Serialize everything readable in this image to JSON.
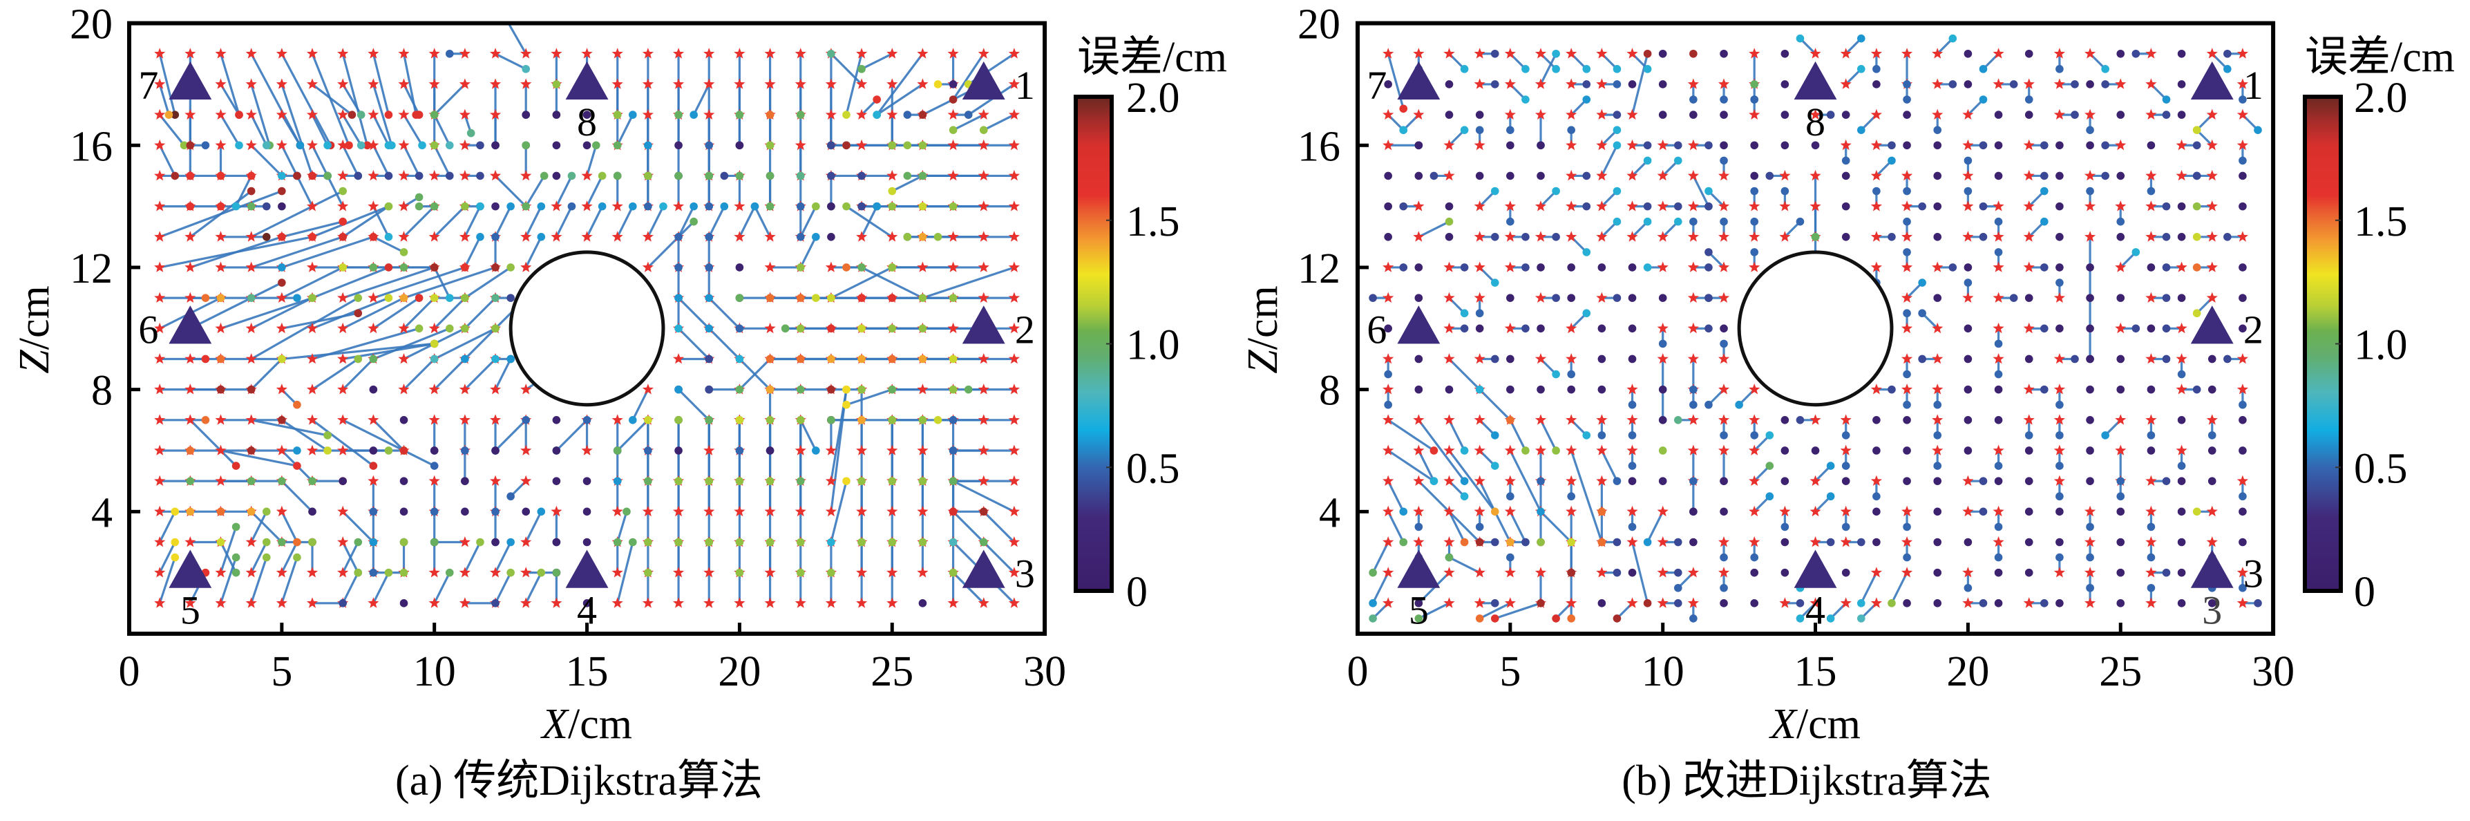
{
  "style": {
    "star_color": "#e8302c",
    "line_color": "#3978bd",
    "anchor_color": "#3d2c7c",
    "obstacle_stroke": "#111111",
    "annotation_color": "#444444"
  },
  "colormap": [
    {
      "v": 0.0,
      "c": "#3b1e6b"
    },
    {
      "v": 0.3,
      "c": "#42297a"
    },
    {
      "v": 0.5,
      "c": "#3466b0"
    },
    {
      "v": 0.65,
      "c": "#12ade2"
    },
    {
      "v": 0.8,
      "c": "#4db6bc"
    },
    {
      "v": 0.95,
      "c": "#62ae70"
    },
    {
      "v": 1.05,
      "c": "#6cb050"
    },
    {
      "v": 1.15,
      "c": "#b6cf36"
    },
    {
      "v": 1.28,
      "c": "#f0e421"
    },
    {
      "v": 1.42,
      "c": "#f29a30"
    },
    {
      "v": 1.52,
      "c": "#ea6430"
    },
    {
      "v": 1.6,
      "c": "#e5332e"
    },
    {
      "v": 1.8,
      "c": "#d8302c"
    },
    {
      "v": 1.9,
      "c": "#a62c2a"
    },
    {
      "v": 2.0,
      "c": "#6a2820"
    }
  ],
  "chart_data": [
    {
      "type": "scatter",
      "title": "(a) 传统Dijkstra算法",
      "xlabel": "X/cm",
      "ylabel": "Z/cm",
      "xlim": [
        0,
        30
      ],
      "ylim": [
        0,
        20
      ],
      "xticks": [
        "0",
        "5",
        "10",
        "15",
        "20",
        "25",
        "30"
      ],
      "yticks": [
        "4",
        "8",
        "12",
        "16",
        "20"
      ],
      "colorbar": {
        "title": "误差/cm",
        "range": [
          0,
          2
        ],
        "ticks": [
          "2.0",
          "1.5",
          "1.0",
          "0.5",
          "0"
        ]
      },
      "obstacle": {
        "shape": "circle",
        "center": [
          15,
          10
        ],
        "radius": 2.5
      },
      "anchors": [
        {
          "label": "1",
          "x": 28,
          "z": 18,
          "side": "right"
        },
        {
          "label": "2",
          "x": 28,
          "z": 10,
          "side": "right"
        },
        {
          "label": "3",
          "x": 28,
          "z": 2,
          "side": "right"
        },
        {
          "label": "4",
          "x": 15,
          "z": 2,
          "side": "below"
        },
        {
          "label": "5",
          "x": 2,
          "z": 2,
          "side": "below"
        },
        {
          "label": "6",
          "x": 2,
          "z": 10,
          "side": "left"
        },
        {
          "label": "7",
          "x": 2,
          "z": 18,
          "side": "left"
        },
        {
          "label": "8",
          "x": 15,
          "z": 18,
          "side": "below"
        }
      ],
      "annotations": [],
      "grid": {
        "x_min": 1,
        "z_max": 19
      },
      "rows": [
        "0.5,-2,2 0,-4,1.9 0.6,-2,1.7 1.6,-3,1.9 1.6,-3,1.8 1.2,-3,1.6 0.8,-3,1.7 0.5,-2,1.6 0.4,-2,1.7 0,-3,1.1 -0.5,0,0.5 1,-0.5,0.8 -0.8,1.4,1.5 0,-1,1.1 0,-1,1.0 0,-2,0.9 0,-3,0.6 0,-2,1.0 0,-3,0.5 0,-2,1.0 0,-3,1.0 0,-2,1.5 0,-3,1.4 -0.5,-2,1.2 -1,-0.5,1.0 -1.5,-2,0.7 0,-1,0.2 -1,-1.5,1.9 -1.5,-1,1.2",
        "0.3,-1,1.4 0,0,0.1 0.6,-1,1.7 0.6,-2,1.0 1,-3,1.8 1.3,-1,1.9 0.6,-1,0.9 0.6,-2,0.7 0.5,-1,1.7 0,-1,1.3 -1,-1,1.0 0,-2,0.9 0,-1,0.5 0,-1,1.1 0,0,0.1 0,-1,1.1 0,-3,1.0 0,-2,1.0 -0.5,-1,0.6 0,-2,1.4 0,-1,1.5 0,-1,1.0 0,-2,1.1 -1,1,0.9 0,-2,0.5 -1.5,-1,0.7 -0.5,0,1.3 -2,-1,1.9 -1.5,-1,1.1",
        "0.8,-1,1.1 0,-1,1.9 0.6,-1,0.7 0.5,-1,0.8 0.6,-1,0.6 0.5,-1,0.7 0.6,-1,0.8 0.5,-1,0.7 0.6,-1,0.7 0.5,-1,0.8 0.2,-0.6,0.9 0,-1,0.5 0,0,0.1 0,0,0.1 0,0,0.1 0,-1,1.0 0,-2,0.6 0,-2,0.5 0,-2,0.5 0,-1,0.5 0,-1,1.1 0,-2,0.9 0,-1,0.6 0.5,0.5,1.6 0,-1,0.5 -0.5,0,0.5 0.5,0,0.5 -1,-0.5,1.1 -1,-0.5,1.1",
        "0.5,-1,1.9 0.5,0,0.5 0,-1,1.3 1,-1,0.7 0.5,-1,0.6 0.5,-1,0.7 0.5,-1,0.6 0.5,-1,0.7 0.5,-1,0.6 0.5,-1,0.6 0.5,0,0.4 0,0,0.1 0,0,0.1 0,0,0.1 0,0,0.1 0.5,1,0.6 0,-1,0.5 0,0,0.2 0,-1,1.0 0,0,0.1 0,-2,1.0 0,-1,0.9 0.5,0,0.5 -1,0,0.4 -1.5,0,1.0 -2.5,0,1.9 -2,0,1.1 -2.5,0,1.1 -3,0,1.1",
        "1,0,1.6 1,0,1.6 1,0,1.6 -0.5,-1,0.7 0.5,0,0.4 0.5,0,0.4 0.5,0,0.4 0.5,0,0.4 0.5,0,0.4 0.5,0,0.4 0.5,0,0.4 1,-1,1.0 0,1,1.0 0,0,0.1 0.3,1,1.0 0,0,0.3 0,-1,0.5 0,0,0.2 0,-1,0.5 -0.5,0,0.4 0,0,0.1 0,-1,0.5 0,-1,0.5 -1,0,0.4 -1,0,0.4 -1,-0.5,1.2 -1.5,0,1.0 -2,0,1.1 -3,0,1.0",
        "1,0,1.6 1,0,1.6 1,0,1.0 0.5,0,0.4 0,0,0.1 -0.5,1,1.9 -0.5,1,1.0 0.5,-1,0.7 0.5,0.3,1.0 -0.5,0,1.0 0.5,0,0.4 0,0,0.2 0.6,1,1.0 0.5,1,0.9 0.5,1,1.1 0,1,1.0 0,1,1.1 0,1,1.0 0,1,1.0 0,1,1.0 0,1,1.0 0,-1,0.5 0,0,0.1 0.5,0,0.4 -1,0,0.4 -1.5,0,1.0 -2,0,1.1 -2,0,1.2 -2,0,1.1",
        "4,1.5,1.9 2,1.5,1.9 1.5,0,2 3,1.5,1.1 2,0.5,1.6 2.5,1,1.1 1.5,1,1.1 1,-0.5,1.1 1,1,1.0 1,1,1.1 0.5,1,0.7 0.5,1,0.6 0.5,1,0.6 0.5,1,0.5 0.5,1,0.6 0.5,1,0.6 0.5,1,0.7 0.5,1,0.6 0.5,1,0.6 0.5,1,0.6 -0.5,1,0.6 0.5,1,1.1 0,0,0.1 0.5,1,0.6 -1.5,1,1.1 -0.5,0,0.4 -1,0,1.4 -2.5,0,1.1 -2.5,0,1.1",
        "5,1,1.6 3,1,1.7 2,0,0.6 3,1,1.8 3,1,1.7 2,0,1.0 2,0,1.0 2,0,1.1 1,0,1.1 0.5,-1,0.7 0.5,1,0.6 0,1,0.5 0.5,1,0.6 x x x 1.5,1.5,1.0 0,1,0.5 0,1,0.5 0,0,0.1 1,0,1.1 0.5,1,0.6 1,0,1.1 -0.5,0,1.5 -2,-1,1.2 -1,0,1.1 -2,0,1.3 -3,0,1.1 -3,-1,1.1",
        "1.5,0,1.5 1,0,1.5 1,0,0.9 1.5,0,0.6 2,1,1.2 2.5,1,1.8 3,1,1.9 3,1,1.6 3,1,1.9 1,0,1.2 1.5,1,1.1 0.5,0,0.4 x x x x x 0,1,0.5 0,1,0.5 0,0,0.1 -1,0,1.0 -1,0,1.0 -2,0,1.5 -2,0,1.5 -2.5,0,1.2 -2,1,1.0 -3,0,1.6 -3,0,1.7 -2,0,1.1",
        "2,1,1.4 3,1.5,1.9 3,1,1.2 2,1,1.1 2.5,0.5,1.9 2.5,1,1.2 2,1,1.4 1.5,1,1.7 1,1,1.2 1,1,1.1 1,1,0.9 1,1,0.7 x x x x x 0,1,0.5 -1,1,0.6 -1,1,0.6 -1,0,0.5 -0.5,0,1.1 -1.5,0,1.0 -2,0,1.1 -2,0,1.7 -2,0,1.6 -3,0,1.2 -3,0,1.1 -3,0,1.1",
        "1.5,0,1.6 1,0,1.5 2,0,1.0 3.5,2,1.1 5,0.5,1.9 3.5,1,1.1 3,0.5,1.2 2.5,1,1.1 2,1,1.1 2,1,1.1 1,1,1.1 0.5,0,0.4 x x x x x 1,0,0.4 -1,1,0.7 -1,1,0.6 -1,-1,1.0 -1,0,1.5 -2,0,1.5 -2,0,1.5 -2,0,1.4 -2,0,1.4 -2,0,1.5 -2,0,1.4 -2,0,1.2",
        "2,0,1.9 1,0,1.9 1,0,1.9 1,1,1.2 0.5,-0.5,1.5 1.5,1,1.1 1,1,1.0 0,0,0.1 1,1,0.8 1,1,0.6 1,1,0.7 0.5,1,0.6 1.5,1,0.6 x x x -0.5,-1,0.6 0,0,0.1 0,0,0.1 -1,0,0.4 -1,1,0.7 -1,0,1.7 -1,0,1.0 -1,0,1.9 -1.5,-0.5,1.3 -1,0,1.2 -2,0,1.0 -1,0,1.1 -1.5,0,1.0",
        "1.5,0,1.5 1.5,-1.5,1.7 2,0,1.9 2.5,-0.5,1.1 1.5,-1,1.2 2,-1.5,1.8 2,-1,1.2 1,-1,1.2 0,0,0.1 0,-1,0.5 0,-1,0.5 0,-1,0.5 -1,-1,0.7 0,0,0.1 -1,-1,0.7 0,-1,0.5 -1,-1,0.7 0,0,0.1 -1,1,0.6 0,-1,0.5 0,-1,0.5 0.5,-1,0.6 0,0,0.1 -1,0,0.5 -2,0,1.6 -1,0,1.0 -2,0,1.1 -1.5,0,1.2 -2,0,1.0",
        "1,0,1.5 2,0,1.9 2.5,-0.5,1.6 1.5,0,0.6 1,-1,1.0 3,0,1.8 1.5,0,1.1 0,0,0.1 1,-0.5,0.5 0,0,0.1 0,-1,0.5 0,0,0.1 0,1,0.5 0,0,0.1 0,1,0.5 0,0,0.1 0,1,0.5 0,0,0.1 0,1,0.5 0,1,0.5 0,0,0.1 0,1,0.5 0,1,1.0 0,2,1.1 0,1,1.1 0,-1,1.0 0,1,0.5 -1,0,1.4 -2,0,1.2",
        "1,0,1.0 2,0,1.5 1,0,1.0 1,0,1.0 1,-1,1.1 1,0,1.5 0,0,0.1 0,-1,0.5 0,0,0.1 0,-1,0.5 0,0,0.1 0,-1,0.5 -0.5,-0.5,0.5 0,0,0.1 0,0,0.1 0,1,1.0 0,1,0.5 0,2,1.0 0,2,1.0 0,2,1.4 0,3,1.4 0,2,1.4 0.5,3,1.2 0,-2,1.2 0,2,1.0 0,2,1.0 0,1,0.6 -1,0,1.2 -2,0,1.1",
        "1,0,1.4 1,0,1.5 1,0,1.4 1,-1,1.0 0.5,-1,1.0 0,0,0.1 1,-1,1.2 0,-1,0.6 0,0,0.1 0,-1,0.5 0,0,0.1 0,-1,0.6 0,0,0.1 0,-1,0.5 0,0,0.1 0,1,0.6 0,3,1.2 0,3,1.1 0,3,1.0 0,3,1.2 0,3,1.1 0,3,1.1 0.5,4,1.3 0,3,1.4 0,3,1.1 0,3,1.1 0,2,0.5 -1,0,1.7 -2,1,1.7",
        "0.5,1,1.3 1,0,1.2 0.5,-1,1.0 0.5,1,1.1 1,0,1.4 0,0,0.1 0.5,-1,0.6 0,-1,0.5 0,0,0.1 0,0,0.1 -1,0,0.4 0,0,0.1 0.5,1,0.6 0,0,0.1 0,0,0.1 0.3,1,1.0 0,2,1.0 0,2,1.1 0,2,1.1 0,2,1.1 0,2,1.1 0,2,1.0 0.5,2,1.3 0,2,1.1 0,2,1.1 0,2,1.1 0,2,1.0 -1,1,1.8 -1,1,1.9",
        "0.5,1,1.3 0,0,0.1 0.5,1.5,1.0 0.5,1,1.1 0.5,1,1.5 0,1,1.1 0.5,1,1.0 1,0,1.1 0,1,1.1 0,1,1.0 0.5,1,1.1 0.5,1,0.6 1,0,0.4 0,0,0.1 0,0,0.1 0,1,1.0 0,1,1.1 0,1,1.0 0,1,1.1 0,1,1.1 0,1,1.1 0,1,1.1 0,1,0.7 0,1,1.0 0,1,1.2 0,1,1.1 0,1,1.1 -1,1,0.8 -1,1,1.0",
        "0.5,1.5,1.3 0.5,1,1.6 0.5,1.5,1.0 0.5,1.5,1.1 0.5,1.5,1.1 1,0,0.4 0.5,1,1.1 0.5,1,1.1 0,0,0.1 0.5,1,1.0 1,0,0.4 0.5,1,1.1 0.5,1,1.1 0,1,1.0 0,0,0.1 0.5,2,1.0 0,1,1.1 0,2,1.1 0,2,1.1 0,1,1.1 0,2,1.1 0,1,1.1 0,1,1.1 0,2,1.1 0,2,1.1 0,0,0.1 0,1,1.1 -1,1,1.1 -1,1,1.0"
      ]
    },
    {
      "type": "scatter",
      "title": "(b) 改进Dijkstra算法",
      "xlabel": "X/cm",
      "ylabel": "Z/cm",
      "xlim": [
        0,
        30
      ],
      "ylim": [
        0,
        20
      ],
      "xticks": [
        "0",
        "5",
        "10",
        "15",
        "20",
        "25",
        "30"
      ],
      "yticks": [
        "4",
        "8",
        "12",
        "16",
        "20"
      ],
      "colorbar": {
        "title": "误差/cm",
        "range": [
          0,
          2
        ],
        "ticks": [
          "2.0",
          "1.5",
          "1.0",
          "0.5",
          "0"
        ]
      },
      "obstacle": {
        "shape": "circle",
        "center": [
          15,
          10
        ],
        "radius": 2.5
      },
      "anchors": [
        {
          "label": "1",
          "x": 28,
          "z": 18,
          "side": "right"
        },
        {
          "label": "2",
          "x": 28,
          "z": 10,
          "side": "right"
        },
        {
          "label": "3",
          "x": 28,
          "z": 2,
          "side": "right"
        },
        {
          "label": "4",
          "x": 15,
          "z": 2,
          "side": "below"
        },
        {
          "label": "5",
          "x": 2,
          "z": 2,
          "side": "below"
        },
        {
          "label": "6",
          "x": 2,
          "z": 10,
          "side": "left"
        },
        {
          "label": "7",
          "x": 2,
          "z": 18,
          "side": "left"
        },
        {
          "label": "8",
          "x": 15,
          "z": 18,
          "side": "below"
        }
      ],
      "annotations": [
        {
          "text": "3",
          "x": 28,
          "z": 0.8
        }
      ],
      "grid": {
        "x_min": 1,
        "z_max": 19
      },
      "rows": [
        "0.5,-1.8,1.6 0,-0.5,0.5 0.5,-0.5,0.7 0.5,0,0.4 0.5,-0.5,0.7 0.5,-0.5,0.7 0.5,-0.5,0.7 0.5,-0.5,0.7 0.5,-0.5,0.7 0,0,0.1 0,0,1.9 0,0,0.1 0,-1,1.0 0,0,0.1 -0.5,0.5,0.7 0.5,0.5,0.6 0,-0.5,0.5 0,-1,0.5 0.5,0.5,0.7 0,0,0.1 -0.5,-0.5,0.6 0,0,0.1 0,-0.5,0.5 0.5,-0.5,0.7 0,0,0.1 -0.5,0,0.4 0,0,0.1 0.5,-0.5,0.6 -0.5,0,0.4",
        "0,0,0.1 0,0,0.1 0,0,0.1 0.5,0,0.4 0.5,-0.5,0.7 0.5,1,0.7 0.5,0,0.4 0.5,0,0.5 0,0,0.1 0,0,0.1 0,-0.5,0.5 0,-0.5,0.5 0,-0.5,0.5 0,0,0.1 0,0,0.1 0.5,0.5,0.7 0,0,0.1 0,-0.5,0.5 0.5,0,0.4 0,0,0.1 0.5,0,0.4 0,-0.5,0.5 0.5,0,0.4 0,0,0.1 -0.5,0,0.4 0.5,-0.5,0.6 0,0,0.1 0,0,0.1 0,-0.5,0.5",
        "0.5,-0.5,0.7 -0.5,-0.5,0.7 0,0,0.1 0,0,0.1 0,-0.5,0.5 0,-1,0.5 0.5,0.5,0.6 0.5,0,0.4 0.5,2,1.9 0,0,0.1 0,0,0.1 0,0,0.1 0,0.5,0.5 0,0,0.1 0.5,0,0.4 0,0,0.1 -0.5,-0.5,0.6 0,0,0.1 0,-0.5,0.5 0.5,0.5,0.6 0,0,0.1 0,0,0.1 0.5,0,0.4 0,-0.5,0.5 0,0,0.1 0.5,0,0.4 0,0,0.1 -0.5,-0.5,1.3 0.5,-0.5,0.6",
        "1,0,0.4 0,0,0.1 0.5,0.5,0.7 0,0.5,0.5 0,0,0.1 0,0,0.1 0,0.5,0.5 0.5,0.5,0.7 0.5,0,0.4 0.5,0,0.4 0.5,0,0.4 0,0,0.1 0,0,0.1 0,0,0.1 0,0,0.1 0,-0.5,0.5 0.5,0,0.4 0,0,0.1 0,0,0.1 0.5,0,0.4 0,0,0.1 0.5,0,0.4 0,0,0.1 0,0,0.1 -0.5,0,0.4 0,0,0.1 0.5,0,0.4 -0.5,0.5,1.2 0,-0.5,0.5",
        "0,0,0.1 0,0,0.1 -0.5,0,0.4 0,0,0.1 0,0,0.1 0,0,0.1 0.5,0,0.4 0.5,1,0.7 0.5,0.5,0.7 0.5,0.5,0.7 0.5,-1,0.6 0,0.5,0.5 0,0,0.1 -0.5,0,0.4 0,-2,1.0 0,0,0.1 0.5,0.5,0.6 0,-0.5,0.5 0,0,0.1 0,0.5,0.5 0,0,0.1 0.5,0,0.4 0,0,0.1 0.5,0,0.4 0,0,0.1 0,-0.5,0.5 0.5,0,0.4 -0.5,0,0.4 0,0,0.1",
        "0,0,0.1 -0.5,0,0.4 0,0,0.1 0.5,0.5,0.7 0,-0.5,0.5 0.5,0.5,0.7 0.5,0,0.4 0.5,0.5,0.7 0.5,0,0.4 0.5,0,0.4 0.5,0,0.4 -0.5,0.5,0.7 0,0.5,0.5 0,0.5,0.5 0,-1,1.0 0,0,0.1 0,0.5,0.5 0.5,0,0.4 0,0,0.1 0,0.5,0.5 -0.5,0,0.4 0.5,0.5,0.6 0,0,0.1 0,0.5,0.5 0,-0.5,0.5 0.5,0,0.4 0,0,0.1 -0.5,0,1.1 0,0,0.1",
        "0,0,0.1 1,0.5,1.1 0,0,0.1 0.5,0,0.4 0.5,0,0.4 0.5,0,0.4 0.5,-0.5,0.7 0.5,0.5,0.7 0.5,0.5,0.7 0.5,0.5,0.7 0,0.5,0.5 0,0.5,0.5 0,0.5,0.5 0.5,0.5,0.5 0,-3,1.5 0,0,0.1 0.5,0,0.4 0,0.5,0.5 0,0,0.1 0.5,0,0.4 0,0.5,0.5 0.5,0.5,0.6 0,0,0.1 0,-4,0.5 0,0,0.1 0.5,0,0.4 0,0,0.1 -0.5,0,1.2 -0.5,0,0.4",
        "0.5,0,0.4 0,0,0.1 0.5,0,0.4 0.5,-0.5,0.7 0.5,0,0.4 0,0,0.1 0,0,0.1 0,0,0.1 0,0,0.1 -0.5,0,0.7 0.5,0,0.4 -0.5,0.5,0.4 0,0.5,0.5 x x x 0,-0.5,0.5 0,0.5,0.5 0.5,0,0.4 0,0,0.1 0,0.5,0.5 0.5,0,0.4 0,0,0.1 0,0,0.1 0.5,0.5,0.7 0,0,0.1 -0.5,0,0.4 -0.5,0,1.5 0,0,0.1",
        "-0.5,0,0.4 0,0,0.1 0.5,-0.5,0.7 0,-0.5,0.5 0,0,0.1 0.5,0,0.4 0,0,0.1 0.5,0,0.4 0,0,0.1 0,0,0.1 0.5,0,0.4 -0.5,0,0.4 x x x x x 0.5,0.5,0.6 0,0,0.1 0,0.5,0.5 0.5,0,0.4 0,0,0.1 0,0.5,0.5 0,0,0.1 0,0,0.1 0.5,0,0.4 0,0,0.1 -0.5,-0.5,1.2 0,0,0.1",
        "0,0,0.1 0,0,0.1 0.5,0,0.4 0,0,0.1 0.5,0,0.4 0,0,0.1 0.5,0.5,0.7 0,0,0.1 0,0,0.1 0,-0.5,0.5 0.5,0,0.4 0,0,0.1 x x x x x 0,0.5,0.5 -0.5,0.5,0.5 0,0,0.1 0,-0.5,0.5 0.5,0,0.4 0,0,0.1 0,0,0.1 0.5,0,0.4 0,0,0.1 -0.5,0,0.4 0,0,0.1 0,0,0.1",
        "0,-0.5,0.5 0,0,0.1 1,-1,0.7 0.5,0,0.4 0,0,0.1 0.5,-0.5,0.7 0,-0.5,0.5 0,0,0.1 0,0,0.1 0,-2,0.5 0,-1,0.5 0,0.5,0.5 x x x x x 0,-0.5,0.5 -0.5,0,0.4 0,0,0.1 0,-0.5,0.5 0,0,0.1 0.5,0,0.4 0,0,0.1 0,0,0.1 0.5,0,0.4 0,-0.5,0.5 0,0,0.1 -0.5,0,0.4",
        "0,-0.5,0.5 0,0,0.1 0,0,0.1 1,-1,1.5 0,0,0.1 0,0,0.1 0,0,0.1 0,0,0.1 0,-0.5,0.5 0,0,0.1 0,-0.5,0.5 -0.5,-0.5,0.5 -0.5,-0.5,0.6 x x x 0.5,0,0.4 0,-0.5,0.5 0,-0.5,0.5 0,0,0.1 0,0,0.1 0.5,0,0.4 0,-0.5,0.5 0,0,0.1 0,0,0.1 0,0,0.1 0.5,0,0.4 0,0,0.1 0,-0.5,0.5",
        "1.5,-1,1.6 1.5,-2,0.6 0.5,-1,0.7 0.5,-0.5,0.6 0.5,-1,1.1 0.5,-1,1.1 0.5,-0.5,0.7 0,-0.5,0.5 0,-0.5,0.5 0,0,0.1 -0.5,0,0.9 0,-0.5,0.5 0,-0.5,0.5 0,0,0.1 -0.5,0,0.4 0,-0.5,0.5 0,0,0.1 0,0,0.1 0,-0.5,0.5 0,0,0.1 0,0,0.1 0,-0.5,0.5 0,-0.5,0.5 0,0,0.1 -0.5,-0.5,0.6 0,-0.5,0.5 0,0,0.1 0,-0.5,0.5 0,0,0.1",
        "1.5,-1,0.7 0.5,-1,0.7 1.5,-2,1.4 0.5,-0.5,0.7 1,-2,0.6 0,-1,0.5 1,-3,1.5 0.5,-1,0.5 0,-0.5,0.5 0,0,1.1 0,-1,0.5 0,-1,0.5 0.5,0.5,0.7 0,0,0.1 0,0,0.1 0,-0.5,0.5 0,0,0.1 0,0,0.1 0,-0.5,0.5 0,0,0.1 0,-0.5,0.5 0,0,0.1 0,-0.5,0.5 0,0,0.1 0,-1,0.5 0,0,0.1 0,-0.5,0.5 0,0,0.1 0,0,0.1",
        "0.5,-1,0.6 2,-2,1.9 0.5,-0.5,0.7 1,-2,1.4 0,-0.5,0.5 0,-2,1.9 0,-0.5,0.5 0,-1,1.5 0,0,0.1 0,0,0.1 0,-1,0.5 0,0,0.1 0.5,0.5,1.0 0,0,0.1 0.5,0.5,0.6 0,0,0.1 0,-0.5,0.5 0,0,0.1 0,0,0.1 0.5,0,0.4 0,0,0.1 0,0,0.1 0,-0.5,0.5 0,0,0.1 0,-0.5,0.5 0.5,0,0.4 0,0,0.1 0,0,0.1 0,-0.5,0.5",
        "0.5,-1,1.0 0,-0.5,0.5 0.5,-1,1.5 0,-0.5,0.5 0.5,-1,0.6 1,-1,1.2 0,-2,0.7 0,-1,1.5 0,-0.5,0.5 -0.5,-1,0.6 0,0,0.1 0,0,0.1 0.5,0.5,0.6 0,-0.5,0.5 0.5,0.5,0.6 0,-0.5,0.5 0,0,0.1 0,-0.5,0.5 0,0,0.1 0.5,0,0.4 0,-0.5,0.5 0,0,0.1 0,0,0.1 0,-0.5,0.5 0,0,0.1 0,-0.5,0.5 0,0,0.1 -0.5,0,1.2 0,0,0.1",
        "-0.5,-1,1.0 0,-0.5,0.5 0,-0.5,0.5 0.5,0,0.4 0.5,0,0.4 0,0,1.1 0,-1,1.9 0.5,0,0.4 0.5,-2,1.9 0.5,0,0.4 0,0,0.1 0,-0.5,0.5 0,-0.5,0.5 0,0,0.1 0.5,0,0.4 0.5,0,0.4 0,0,0.1 0,-0.5,0.5 0,0,0.1 0,0,0.1 0,-0.5,0.5 0,0,0.1 0,0,0.1 0,-0.5,0.5 0,0,0.1 0,-0.5,0.5 0,0,0.1 0,-0.5,0.5 0,0,0.1",
        "-0.5,-1,0.6 0,0,0.1 -1,-1,1.1 -1,0.5,1.0 0,0.5,0.5 0,-1,1.9 0,-1.5,1.5 0.5,0,0.4 0,0,0.1 0.5,0,0.4 -0.5,-0.5,0.5 0,-0.5,0.5 0,0,0.1 0,0,0.1 -0.5,-0.5,0.7 0,0,0.1 -0.5,-1,0.7 -0.5,-1,1.1 0,0,0.1 0,-0.5,0.5 0,0,0.1 0,0,0.1 0,0.5,0.5 0,-0.5,0.5 0,0,0.1 0.5,0,0.4 0,0,0.1 0,-0.5,0.5 0,-0.5,0.5",
        "-0.5,-0.5,0.9 0,0,0.1 -1,-0.5,1.0 0.5,0,0.4 -1,-0.5,1.5 -1.5,-0.5,1.7 -0.5,-0.5,1.8 0,0,0.1 -0.5,-0.5,1.9 0.5,0,0.4 0,-0.5,0.5 0,0,0.1 0,0,0.1 0.5,0,0.4 -0.5,-0.5,0.7 -0.5,-0.5,0.7 -0.5,-0.5,0.8 0,0,0.1 0,0,0.1 0.5,0,0.4 0,0,0.1 0.5,0,0.4 0,0,0.1 0,0.5,0.5 0,0,0.1 0,0.5,0.5 0,0,0.1 0,0,0.1 0.5,0,0.4"
      ]
    }
  ]
}
